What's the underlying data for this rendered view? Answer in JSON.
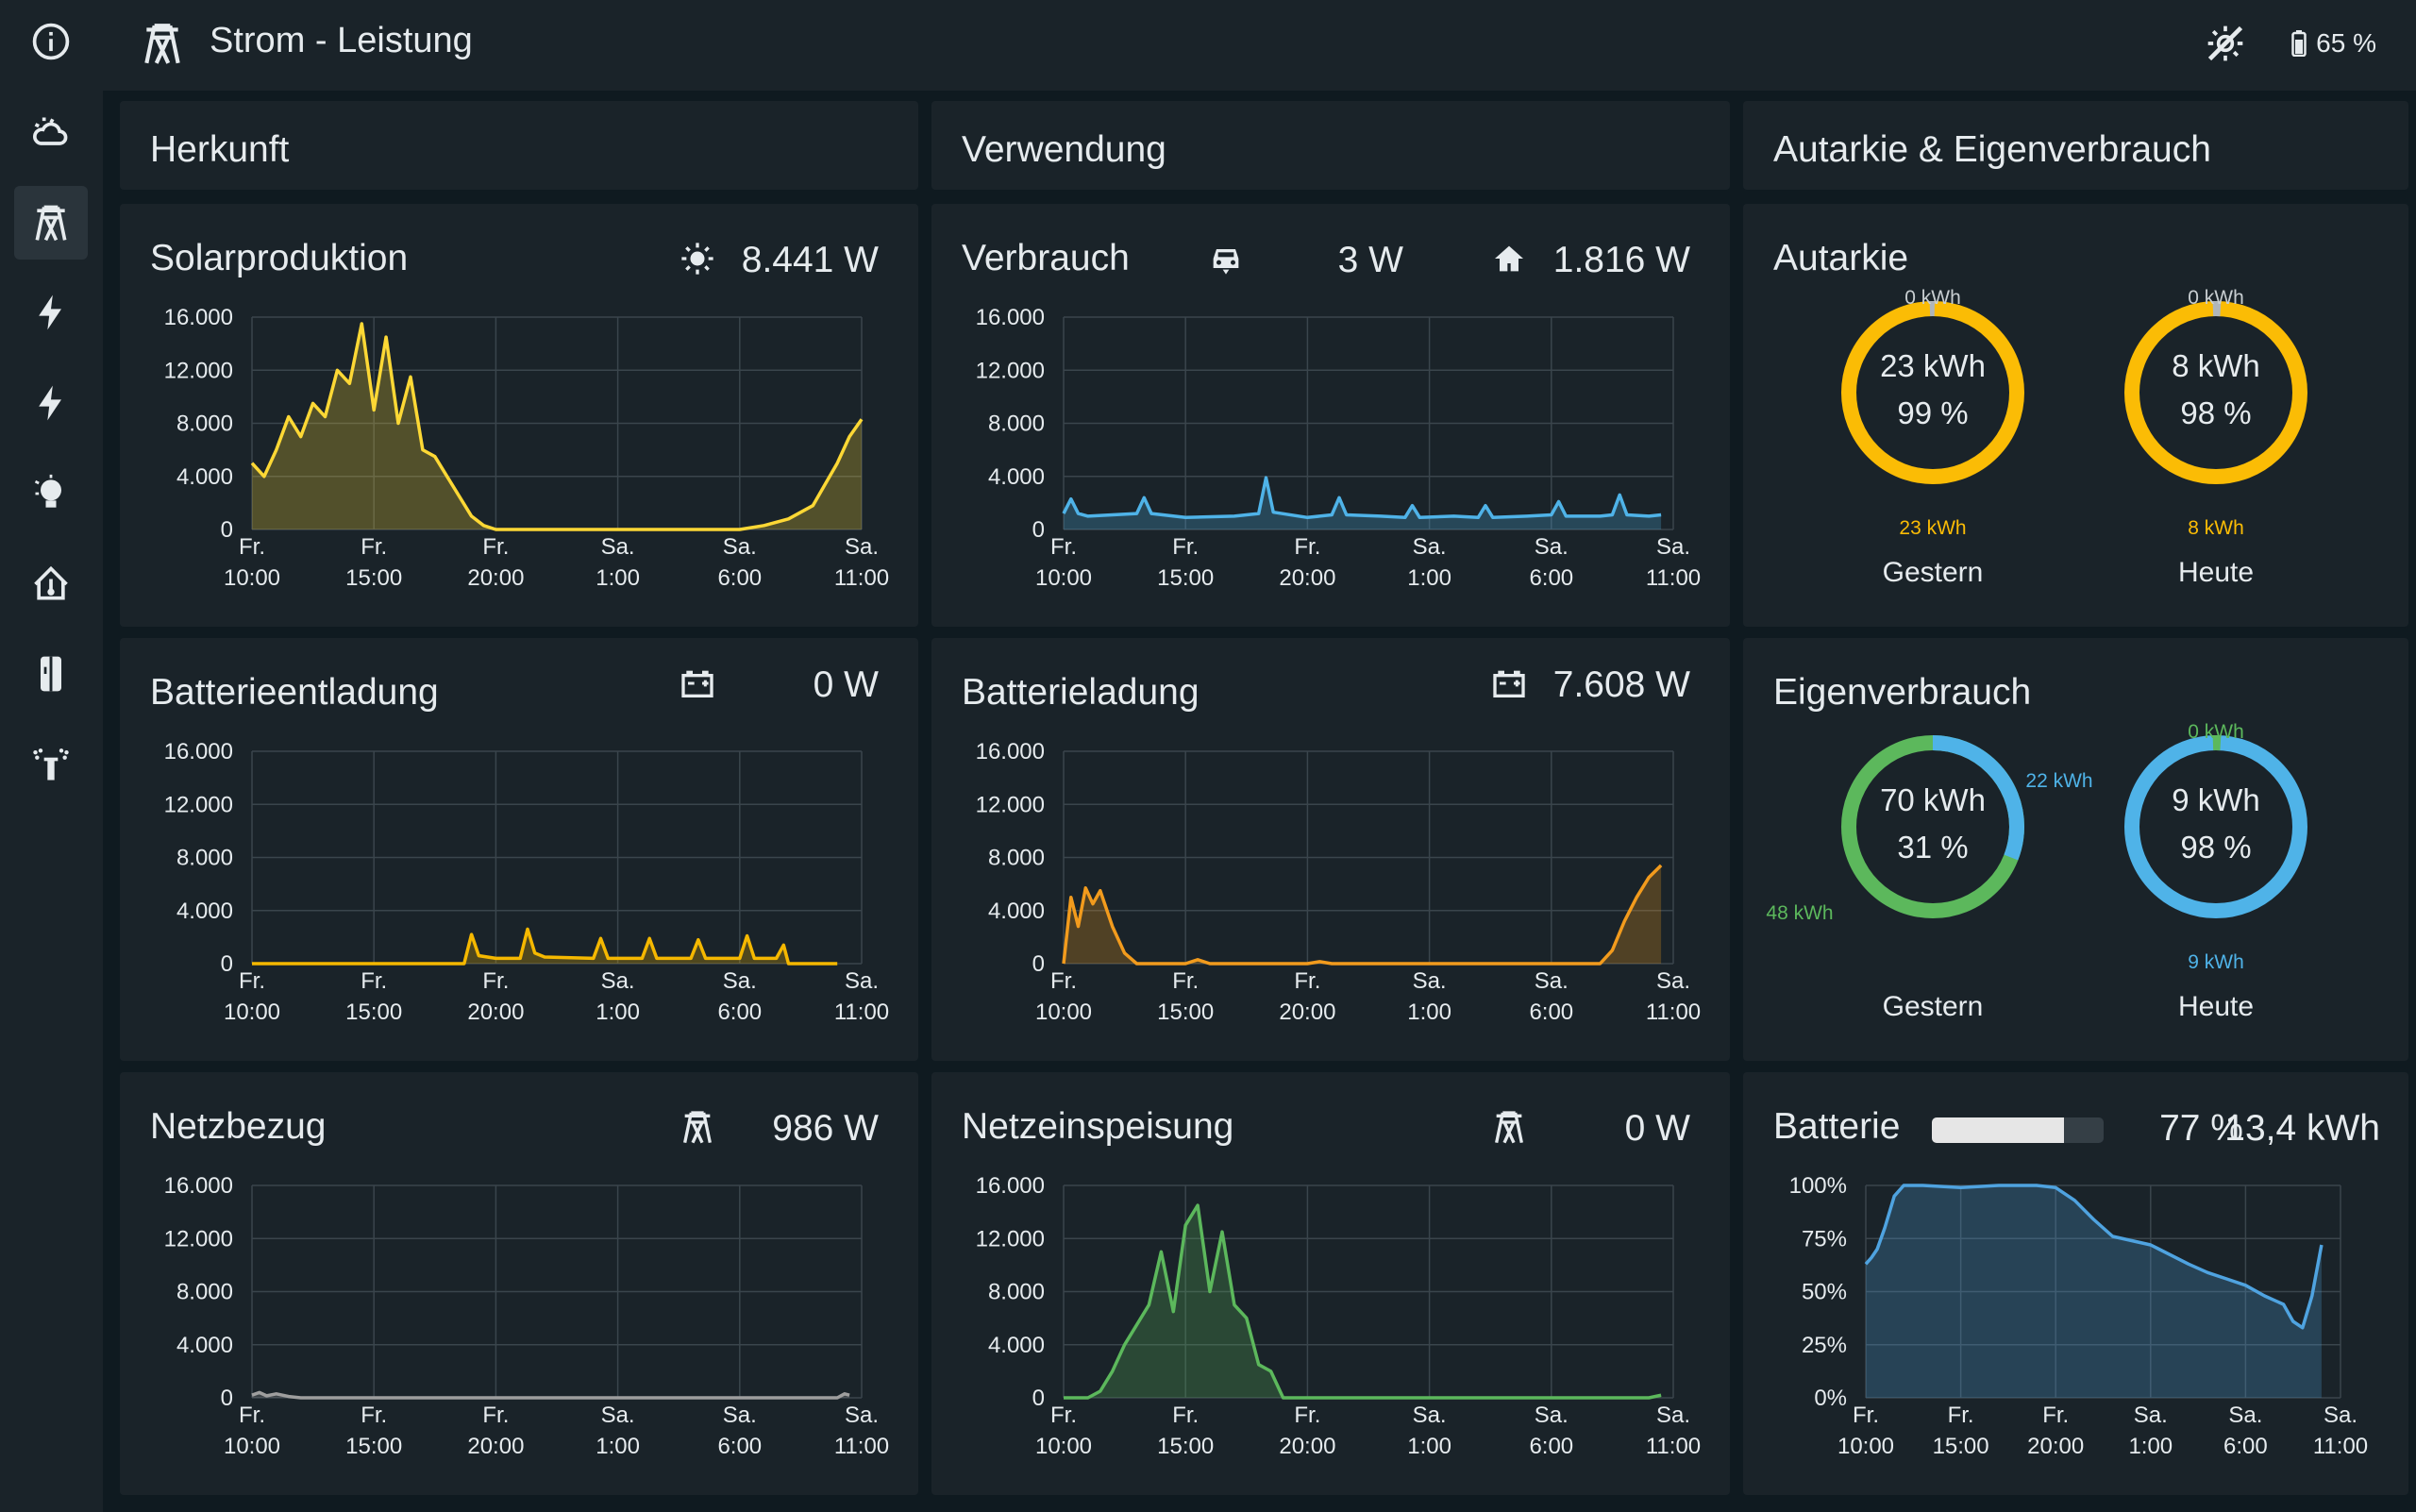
{
  "header": {
    "title": "Strom - Leistung",
    "battery_percent": "65 %",
    "weather_icon": "weather-sunny-off-icon",
    "page_icon": "transmission-tower-icon"
  },
  "sidebar": {
    "items": [
      {
        "icon": "info-icon"
      },
      {
        "icon": "weather-partly-cloudy-icon"
      },
      {
        "icon": "transmission-tower-icon",
        "active": true
      },
      {
        "icon": "flash-icon"
      },
      {
        "icon": "flash-icon"
      },
      {
        "icon": "lightbulb-icon"
      },
      {
        "icon": "home-thermometer-icon"
      },
      {
        "icon": "fridge-icon"
      },
      {
        "icon": "sprinkler-icon"
      }
    ]
  },
  "sections": {
    "herkunft": "Herkunft",
    "verwendung": "Verwendung",
    "autarkie_eigen": "Autarkie & Eigenverbrauch"
  },
  "colors": {
    "solar": "#fdd835",
    "consumption": "#4fb3e8",
    "battery_discharge": "#f5b800",
    "battery_charge": "#f29b1d",
    "grid_import": "#9e9e9e",
    "grid_export": "#5cb85c",
    "battery_soc": "#4fa3e0"
  },
  "cards": {
    "solar": {
      "title": "Solarproduktion",
      "icon": "sun-icon",
      "value": "8.441 W"
    },
    "verbrauch": {
      "title": "Verbrauch",
      "icon_car": "car-icon",
      "value_car": "3 W",
      "icon_home": "home-icon",
      "value_home": "1.816 W"
    },
    "batt_entladung": {
      "title": "Batterieentladung",
      "icon": "battery-icon",
      "value": "0 W"
    },
    "batt_ladung": {
      "title": "Batterieladung",
      "icon": "battery-icon",
      "value": "7.608 W"
    },
    "netzbezug": {
      "title": "Netzbezug",
      "icon": "transmission-tower-icon",
      "value": "986 W"
    },
    "netzeinspeisung": {
      "title": "Netzeinspeisung",
      "icon": "transmission-tower-icon",
      "value": "0 W"
    },
    "autarkie": {
      "title": "Autarkie",
      "gestern": {
        "caption": "Gestern",
        "center_kwh": "23 kWh",
        "center_pct": "99 %",
        "top_label": "0 kWh",
        "bottom_label": "23 kWh"
      },
      "heute": {
        "caption": "Heute",
        "center_kwh": "8 kWh",
        "center_pct": "98 %",
        "top_label": "0 kWh",
        "bottom_label": "8 kWh"
      }
    },
    "eigenverbrauch": {
      "title": "Eigenverbrauch",
      "gestern": {
        "caption": "Gestern",
        "center_kwh": "70 kWh",
        "center_pct": "31 %",
        "right_label": "22 kWh",
        "left_label": "48 kWh"
      },
      "heute": {
        "caption": "Heute",
        "center_kwh": "9 kWh",
        "center_pct": "98 %",
        "top_label": "0 kWh",
        "bottom_label": "9 kWh"
      }
    },
    "batterie": {
      "title": "Batterie",
      "percent": "77 %",
      "energy": "13,4 kWh",
      "level": 0.77
    }
  },
  "x_ticks": [
    [
      "Fr.",
      "10:00"
    ],
    [
      "Fr.",
      "15:00"
    ],
    [
      "Fr.",
      "20:00"
    ],
    [
      "Sa.",
      "1:00"
    ],
    [
      "Sa.",
      "6:00"
    ],
    [
      "Sa.",
      "11:00"
    ]
  ],
  "chart_data": [
    {
      "type": "area",
      "name": "Solarproduktion",
      "ylim": [
        0,
        16000
      ],
      "yticks": [
        "16.000",
        "12.000",
        "8.000",
        "4.000",
        "0"
      ],
      "x": [
        0,
        0.5,
        1,
        1.5,
        2,
        2.5,
        3,
        3.5,
        4,
        4.5,
        5,
        5.5,
        6,
        6.5,
        7,
        7.5,
        8,
        8.5,
        9,
        9.5,
        10,
        12,
        15,
        17,
        20,
        21,
        22,
        23,
        24,
        24.5,
        25
      ],
      "values": [
        5000,
        4000,
        6000,
        8500,
        7000,
        9500,
        8500,
        12000,
        11000,
        15500,
        9000,
        14500,
        8000,
        11500,
        6000,
        5500,
        4000,
        2500,
        1000,
        300,
        0,
        0,
        0,
        0,
        0,
        300,
        800,
        1800,
        5000,
        7000,
        8300
      ]
    },
    {
      "type": "area",
      "name": "Verbrauch",
      "ylim": [
        0,
        16000
      ],
      "yticks": [
        "16.000",
        "12.000",
        "8.000",
        "4.000",
        "0"
      ],
      "x": [
        0,
        0.3,
        0.6,
        1,
        2,
        3,
        3.3,
        3.6,
        5,
        7,
        8,
        8.3,
        8.6,
        10,
        11,
        11.3,
        11.6,
        13,
        14,
        14.3,
        14.6,
        16,
        17,
        17.3,
        17.6,
        19,
        20,
        20.3,
        20.6,
        22,
        22.5,
        22.8,
        23.1,
        24,
        24.5
      ],
      "values": [
        1200,
        2300,
        1200,
        1000,
        1100,
        1200,
        2400,
        1200,
        900,
        1000,
        1200,
        3900,
        1300,
        900,
        1100,
        2400,
        1100,
        1000,
        900,
        1800,
        900,
        1000,
        900,
        1800,
        900,
        1000,
        1100,
        2100,
        1000,
        1000,
        1100,
        2600,
        1100,
        1000,
        1100
      ]
    },
    {
      "type": "area",
      "name": "Batterieentladung",
      "ylim": [
        0,
        16000
      ],
      "yticks": [
        "16.000",
        "12.000",
        "8.000",
        "4.000",
        "0"
      ],
      "x": [
        0,
        8.7,
        9,
        9.3,
        10,
        11,
        11.3,
        11.6,
        12,
        14,
        14.3,
        14.6,
        16,
        16.3,
        16.6,
        18,
        18.3,
        18.6,
        20,
        20.3,
        20.6,
        21.5,
        21.8,
        22,
        24
      ],
      "values": [
        0,
        0,
        2200,
        600,
        400,
        400,
        2600,
        800,
        500,
        400,
        1900,
        400,
        400,
        1900,
        400,
        400,
        1800,
        400,
        400,
        2100,
        400,
        400,
        1400,
        0,
        0
      ]
    },
    {
      "type": "area",
      "name": "Batterieladung",
      "ylim": [
        0,
        16000
      ],
      "yticks": [
        "16.000",
        "12.000",
        "8.000",
        "4.000",
        "0"
      ],
      "x": [
        0,
        0.3,
        0.6,
        0.9,
        1.2,
        1.5,
        2,
        2.5,
        3,
        5,
        5.5,
        6,
        10,
        10.5,
        11,
        22,
        22.5,
        23,
        23.5,
        24,
        24.5
      ],
      "values": [
        0,
        5000,
        2800,
        5700,
        4500,
        5500,
        2800,
        800,
        0,
        0,
        300,
        0,
        0,
        150,
        0,
        0,
        1000,
        3200,
        5000,
        6500,
        7400
      ]
    },
    {
      "type": "area",
      "name": "Netzbezug",
      "ylim": [
        0,
        16000
      ],
      "yticks": [
        "16.000",
        "12.000",
        "8.000",
        "4.000",
        "0"
      ],
      "x": [
        0,
        0.3,
        0.6,
        1,
        1.5,
        2,
        24,
        24.3,
        24.5
      ],
      "values": [
        200,
        400,
        150,
        300,
        100,
        0,
        0,
        300,
        200
      ]
    },
    {
      "type": "area",
      "name": "Netzeinspeisung",
      "ylim": [
        0,
        16000
      ],
      "yticks": [
        "16.000",
        "12.000",
        "8.000",
        "4.000",
        "0"
      ],
      "x": [
        0,
        1,
        1.5,
        2,
        2.5,
        3,
        3.5,
        4,
        4.5,
        5,
        5.5,
        6,
        6.5,
        7,
        7.5,
        8,
        8.5,
        9,
        9.5,
        10,
        10.5,
        24,
        24.5
      ],
      "values": [
        0,
        0,
        500,
        2000,
        4000,
        5500,
        7000,
        11000,
        6500,
        13000,
        14500,
        8000,
        12500,
        7000,
        6000,
        2500,
        2000,
        0,
        0,
        0,
        0,
        0,
        200
      ]
    },
    {
      "type": "area",
      "name": "Batterie",
      "ylim": [
        0,
        100
      ],
      "yticks": [
        "100%",
        "75%",
        "50%",
        "25%",
        "0%"
      ],
      "x": [
        0,
        0.3,
        0.6,
        1,
        1.5,
        2,
        3,
        5,
        7,
        9,
        10,
        11,
        12,
        13,
        15,
        17,
        18,
        19,
        20,
        21,
        22,
        22.5,
        23,
        23.5,
        24
      ],
      "values": [
        63,
        66,
        70,
        80,
        95,
        100,
        100,
        99,
        100,
        100,
        99,
        93,
        84,
        76,
        72,
        63,
        59,
        56,
        53,
        48,
        44,
        36,
        33,
        48,
        72
      ]
    }
  ]
}
